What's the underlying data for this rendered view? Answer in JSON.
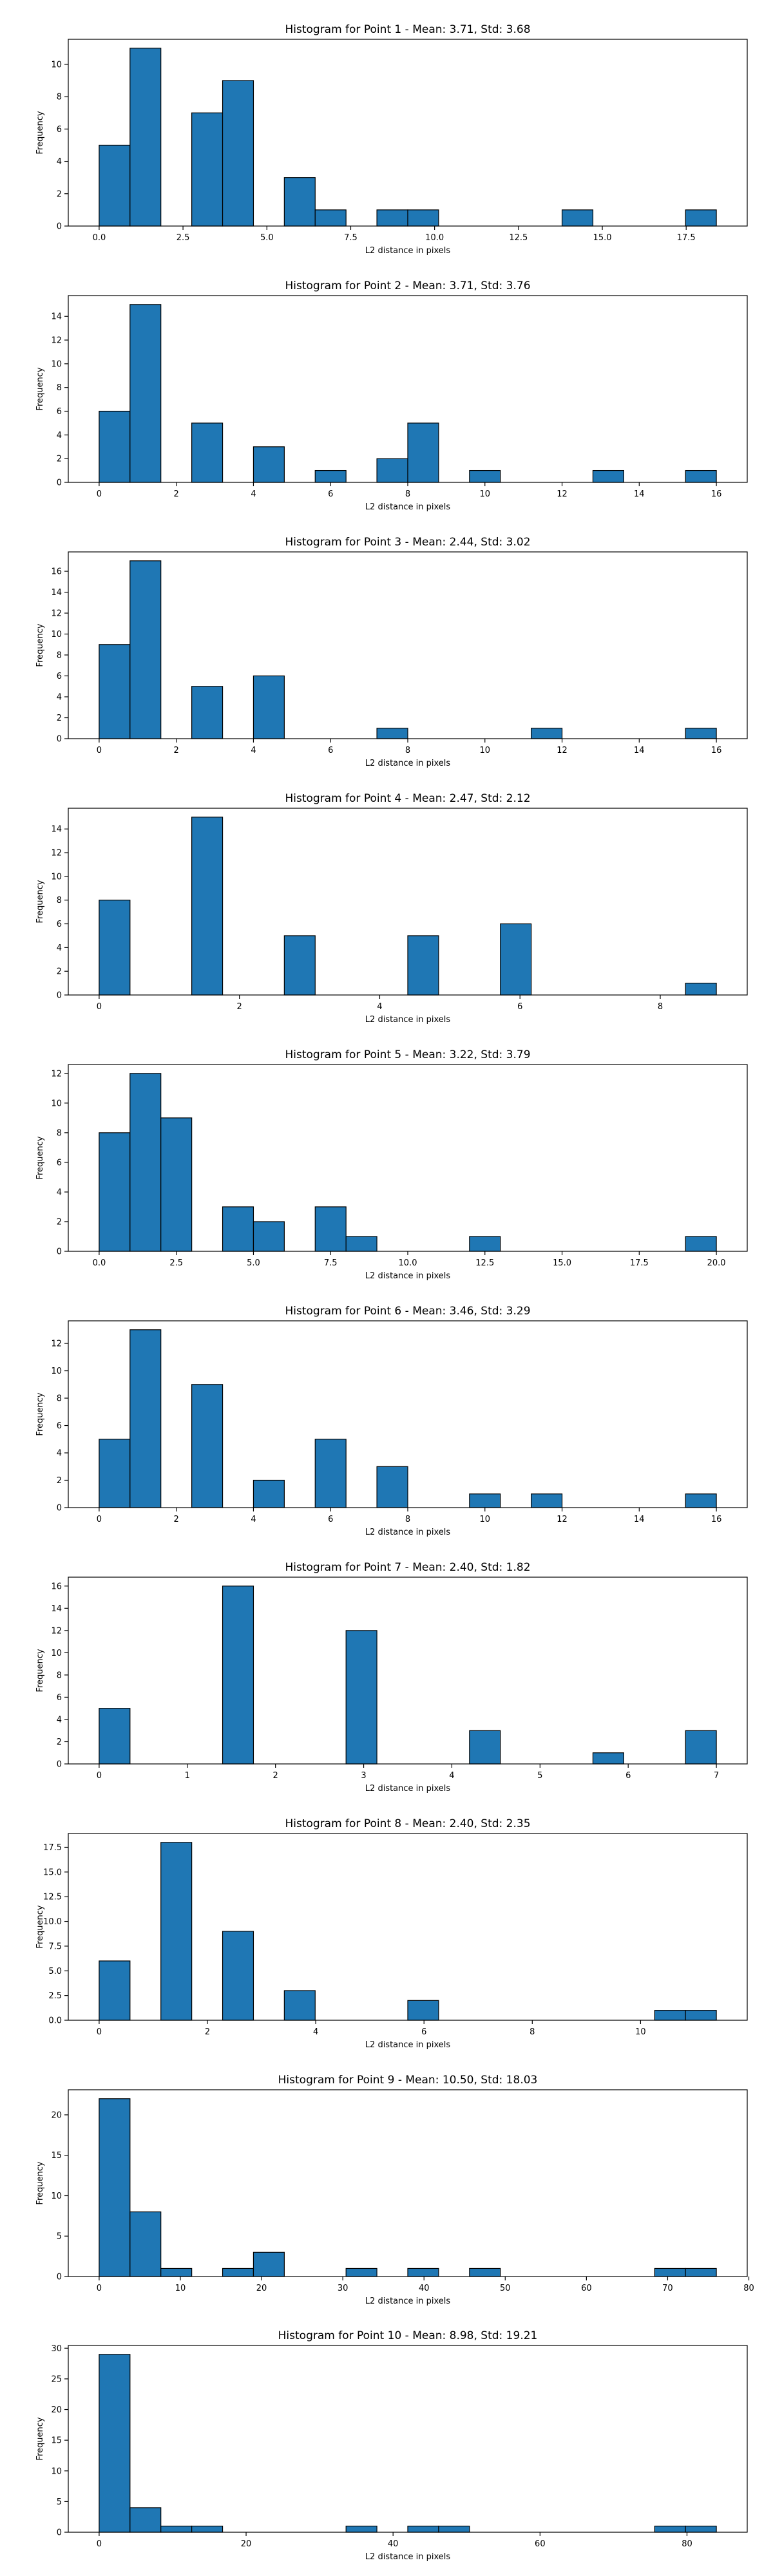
{
  "colors": {
    "bar_fill": "#1f77b4",
    "bar_edge": "#000000",
    "axis": "#000000",
    "background": "#ffffff"
  },
  "chart_data": [
    {
      "type": "bar",
      "title": "Histogram for Point 1 - Mean: 3.71, Std: 3.68",
      "xlabel": "L2 distance in pixels",
      "ylabel": "Frequency",
      "xlim": [
        -0.92,
        19.32
      ],
      "ylim": [
        0,
        11.55
      ],
      "xticks": [
        0.0,
        2.5,
        5.0,
        7.5,
        10.0,
        12.5,
        15.0,
        17.5
      ],
      "xtick_labels": [
        "0.0",
        "2.5",
        "5.0",
        "7.5",
        "10.0",
        "12.5",
        "15.0",
        "17.5"
      ],
      "yticks": [
        0,
        2,
        4,
        6,
        8,
        10
      ],
      "ytick_labels": [
        "0",
        "2",
        "4",
        "6",
        "8",
        "10"
      ],
      "bins": [
        [
          0.0,
          0.92,
          5
        ],
        [
          0.92,
          1.84,
          11
        ],
        [
          2.76,
          3.68,
          7
        ],
        [
          3.68,
          4.6,
          9
        ],
        [
          5.52,
          6.44,
          3
        ],
        [
          6.44,
          7.36,
          1
        ],
        [
          8.28,
          9.2,
          1
        ],
        [
          9.2,
          10.12,
          1
        ],
        [
          13.8,
          14.72,
          1
        ],
        [
          17.48,
          18.4,
          1
        ]
      ]
    },
    {
      "type": "bar",
      "title": "Histogram for Point 2 - Mean: 3.71, Std: 3.76",
      "xlabel": "L2 distance in pixels",
      "ylabel": "Frequency",
      "xlim": [
        -0.8,
        16.8
      ],
      "ylim": [
        0,
        15.75
      ],
      "xticks": [
        0,
        2,
        4,
        6,
        8,
        10,
        12,
        14,
        16
      ],
      "xtick_labels": [
        "0",
        "2",
        "4",
        "6",
        "8",
        "10",
        "12",
        "14",
        "16"
      ],
      "yticks": [
        0,
        2,
        4,
        6,
        8,
        10,
        12,
        14
      ],
      "ytick_labels": [
        "0",
        "2",
        "4",
        "6",
        "8",
        "10",
        "12",
        "14"
      ],
      "bins": [
        [
          0.0,
          0.8,
          6
        ],
        [
          0.8,
          1.6,
          15
        ],
        [
          2.4,
          3.2,
          5
        ],
        [
          4.0,
          4.8,
          3
        ],
        [
          5.6,
          6.4,
          1
        ],
        [
          7.2,
          8.0,
          2
        ],
        [
          8.0,
          8.8,
          5
        ],
        [
          9.6,
          10.4,
          1
        ],
        [
          12.8,
          13.6,
          1
        ],
        [
          15.2,
          16.0,
          1
        ]
      ]
    },
    {
      "type": "bar",
      "title": "Histogram for Point 3 - Mean: 2.44, Std: 3.02",
      "xlabel": "L2 distance in pixels",
      "ylabel": "Frequency",
      "xlim": [
        -0.8,
        16.8
      ],
      "ylim": [
        0,
        17.85
      ],
      "xticks": [
        0,
        2,
        4,
        6,
        8,
        10,
        12,
        14,
        16
      ],
      "xtick_labels": [
        "0",
        "2",
        "4",
        "6",
        "8",
        "10",
        "12",
        "14",
        "16"
      ],
      "yticks": [
        0,
        2,
        4,
        6,
        8,
        10,
        12,
        14,
        16
      ],
      "ytick_labels": [
        "0",
        "2",
        "4",
        "6",
        "8",
        "10",
        "12",
        "14",
        "16"
      ],
      "bins": [
        [
          0.0,
          0.8,
          9
        ],
        [
          0.8,
          1.6,
          17
        ],
        [
          2.4,
          3.2,
          5
        ],
        [
          4.0,
          4.8,
          6
        ],
        [
          7.2,
          8.0,
          1
        ],
        [
          11.2,
          12.0,
          1
        ],
        [
          15.2,
          16.0,
          1
        ]
      ]
    },
    {
      "type": "bar",
      "title": "Histogram for Point 4 - Mean: 2.47, Std: 2.12",
      "xlabel": "L2 distance in pixels",
      "ylabel": "Frequency",
      "xlim": [
        -0.44,
        9.24
      ],
      "ylim": [
        0,
        15.75
      ],
      "xticks": [
        0,
        2,
        4,
        6,
        8
      ],
      "xtick_labels": [
        "0",
        "2",
        "4",
        "6",
        "8"
      ],
      "yticks": [
        0,
        2,
        4,
        6,
        8,
        10,
        12,
        14
      ],
      "ytick_labels": [
        "0",
        "2",
        "4",
        "6",
        "8",
        "10",
        "12",
        "14"
      ],
      "bins": [
        [
          0.0,
          0.44,
          8
        ],
        [
          1.32,
          1.76,
          15
        ],
        [
          2.64,
          3.08,
          5
        ],
        [
          4.4,
          4.84,
          5
        ],
        [
          5.72,
          6.16,
          6
        ],
        [
          8.36,
          8.8,
          1
        ]
      ]
    },
    {
      "type": "bar",
      "title": "Histogram for Point 5 - Mean: 3.22, Std: 3.79",
      "xlabel": "L2 distance in pixels",
      "ylabel": "Frequency",
      "xlim": [
        -1.0,
        21.0
      ],
      "ylim": [
        0,
        12.6
      ],
      "xticks": [
        0.0,
        2.5,
        5.0,
        7.5,
        10.0,
        12.5,
        15.0,
        17.5,
        20.0
      ],
      "xtick_labels": [
        "0.0",
        "2.5",
        "5.0",
        "7.5",
        "10.0",
        "12.5",
        "15.0",
        "17.5",
        "20.0"
      ],
      "yticks": [
        0,
        2,
        4,
        6,
        8,
        10,
        12
      ],
      "ytick_labels": [
        "0",
        "2",
        "4",
        "6",
        "8",
        "10",
        "12"
      ],
      "bins": [
        [
          0.0,
          1.0,
          8
        ],
        [
          1.0,
          2.0,
          12
        ],
        [
          2.0,
          3.0,
          9
        ],
        [
          4.0,
          5.0,
          3
        ],
        [
          5.0,
          6.0,
          2
        ],
        [
          7.0,
          8.0,
          3
        ],
        [
          8.0,
          9.0,
          1
        ],
        [
          12.0,
          13.0,
          1
        ],
        [
          19.0,
          20.0,
          1
        ]
      ]
    },
    {
      "type": "bar",
      "title": "Histogram for Point 6 - Mean: 3.46, Std: 3.29",
      "xlabel": "L2 distance in pixels",
      "ylabel": "Frequency",
      "xlim": [
        -0.8,
        16.8
      ],
      "ylim": [
        0,
        13.65
      ],
      "xticks": [
        0,
        2,
        4,
        6,
        8,
        10,
        12,
        14,
        16
      ],
      "xtick_labels": [
        "0",
        "2",
        "4",
        "6",
        "8",
        "10",
        "12",
        "14",
        "16"
      ],
      "yticks": [
        0,
        2,
        4,
        6,
        8,
        10,
        12
      ],
      "ytick_labels": [
        "0",
        "2",
        "4",
        "6",
        "8",
        "10",
        "12"
      ],
      "bins": [
        [
          0.0,
          0.8,
          5
        ],
        [
          0.8,
          1.6,
          13
        ],
        [
          2.4,
          3.2,
          9
        ],
        [
          4.0,
          4.8,
          2
        ],
        [
          5.6,
          6.4,
          5
        ],
        [
          7.2,
          8.0,
          3
        ],
        [
          9.6,
          10.4,
          1
        ],
        [
          11.2,
          12.0,
          1
        ],
        [
          15.2,
          16.0,
          1
        ]
      ]
    },
    {
      "type": "bar",
      "title": "Histogram for Point 7 - Mean: 2.40, Std: 1.82",
      "xlabel": "L2 distance in pixels",
      "ylabel": "Frequency",
      "xlim": [
        -0.35,
        7.35
      ],
      "ylim": [
        0,
        16.8
      ],
      "xticks": [
        0,
        1,
        2,
        3,
        4,
        5,
        6,
        7
      ],
      "xtick_labels": [
        "0",
        "1",
        "2",
        "3",
        "4",
        "5",
        "6",
        "7"
      ],
      "yticks": [
        0,
        2,
        4,
        6,
        8,
        10,
        12,
        14,
        16
      ],
      "ytick_labels": [
        "0",
        "2",
        "4",
        "6",
        "8",
        "10",
        "12",
        "14",
        "16"
      ],
      "bins": [
        [
          0.0,
          0.35,
          5
        ],
        [
          1.4,
          1.75,
          16
        ],
        [
          2.8,
          3.15,
          12
        ],
        [
          4.2,
          4.55,
          3
        ],
        [
          5.6,
          5.95,
          1
        ],
        [
          6.65,
          7.0,
          3
        ]
      ]
    },
    {
      "type": "bar",
      "title": "Histogram for Point 8 - Mean: 2.40, Std: 2.35",
      "xlabel": "L2 distance in pixels",
      "ylabel": "Frequency",
      "xlim": [
        -0.57,
        11.97
      ],
      "ylim": [
        0,
        18.9
      ],
      "xticks": [
        0,
        2,
        4,
        6,
        8,
        10
      ],
      "xtick_labels": [
        "0",
        "2",
        "4",
        "6",
        "8",
        "10"
      ],
      "yticks": [
        0.0,
        2.5,
        5.0,
        7.5,
        10.0,
        12.5,
        15.0,
        17.5
      ],
      "ytick_labels": [
        "0.0",
        "2.5",
        "5.0",
        "7.5",
        "10.0",
        "12.5",
        "15.0",
        "17.5"
      ],
      "bins": [
        [
          0.0,
          0.57,
          6
        ],
        [
          1.14,
          1.71,
          18
        ],
        [
          2.28,
          2.85,
          9
        ],
        [
          3.42,
          3.99,
          3
        ],
        [
          5.7,
          6.27,
          2
        ],
        [
          10.26,
          10.83,
          1
        ],
        [
          10.83,
          11.4,
          1
        ]
      ]
    },
    {
      "type": "bar",
      "title": "Histogram for Point 9 - Mean: 10.50, Std: 18.03",
      "xlabel": "L2 distance in pixels",
      "ylabel": "Frequency",
      "xlim": [
        -3.8,
        79.8
      ],
      "ylim": [
        0,
        23.1
      ],
      "xticks": [
        0,
        10,
        20,
        30,
        40,
        50,
        60,
        70,
        80
      ],
      "xtick_labels": [
        "0",
        "10",
        "20",
        "30",
        "40",
        "50",
        "60",
        "70",
        "80"
      ],
      "yticks": [
        0,
        5,
        10,
        15,
        20
      ],
      "ytick_labels": [
        "0",
        "5",
        "10",
        "15",
        "20"
      ],
      "bins": [
        [
          0.0,
          3.8,
          22
        ],
        [
          3.8,
          7.6,
          8
        ],
        [
          7.6,
          11.4,
          1
        ],
        [
          15.2,
          19.0,
          1
        ],
        [
          19.0,
          22.8,
          3
        ],
        [
          30.4,
          34.2,
          1
        ],
        [
          38.0,
          41.8,
          1
        ],
        [
          45.6,
          49.4,
          1
        ],
        [
          68.4,
          72.2,
          1
        ],
        [
          72.2,
          76.0,
          1
        ]
      ]
    },
    {
      "type": "bar",
      "title": "Histogram for Point 10 - Mean: 8.98, Std: 19.21",
      "xlabel": "L2 distance in pixels",
      "ylabel": "Frequency",
      "xlim": [
        -4.2,
        88.2
      ],
      "ylim": [
        0,
        30.45
      ],
      "xticks": [
        0,
        20,
        40,
        60,
        80
      ],
      "xtick_labels": [
        "0",
        "20",
        "40",
        "60",
        "80"
      ],
      "yticks": [
        0,
        5,
        10,
        15,
        20,
        25,
        30
      ],
      "ytick_labels": [
        "0",
        "5",
        "10",
        "15",
        "20",
        "25",
        "30"
      ],
      "bins": [
        [
          0.0,
          4.2,
          29
        ],
        [
          4.2,
          8.4,
          4
        ],
        [
          8.4,
          12.6,
          1
        ],
        [
          12.6,
          16.8,
          1
        ],
        [
          33.6,
          37.8,
          1
        ],
        [
          42.0,
          46.2,
          1
        ],
        [
          46.2,
          50.4,
          1
        ],
        [
          75.6,
          79.8,
          1
        ],
        [
          79.8,
          84.0,
          1
        ]
      ]
    }
  ]
}
